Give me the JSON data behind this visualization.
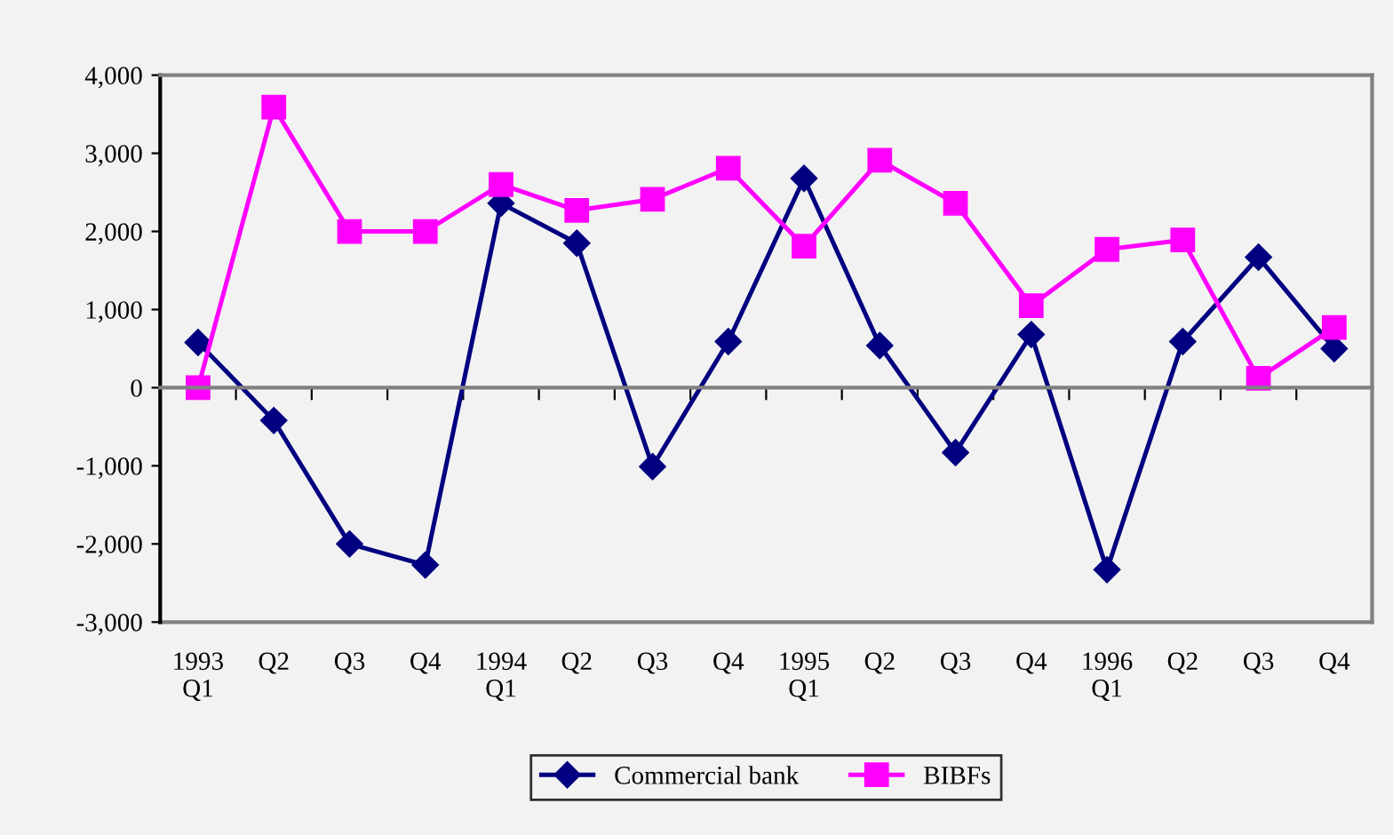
{
  "chart_data": {
    "type": "line",
    "categories": [
      "1993\nQ1",
      "Q2",
      "Q3",
      "Q4",
      "1994\nQ1",
      "Q2",
      "Q3",
      "Q4",
      "1995\nQ1",
      "Q2",
      "Q3",
      "Q4",
      "1996\nQ1",
      "Q2",
      "Q3",
      "Q4"
    ],
    "series": [
      {
        "name": "Commercial bank",
        "color": "#000080",
        "marker": "diamond",
        "values": [
          580,
          -420,
          -2000,
          -2270,
          2360,
          1850,
          -1010,
          590,
          2680,
          540,
          -830,
          680,
          -2330,
          590,
          1670,
          500
        ]
      },
      {
        "name": "BIBFs",
        "color": "#ff00ff",
        "marker": "square",
        "values": [
          0,
          3590,
          2000,
          2000,
          2600,
          2270,
          2410,
          2810,
          1810,
          2910,
          2360,
          1050,
          1770,
          1890,
          120,
          770
        ]
      }
    ],
    "ylim": [
      -3000,
      4000
    ],
    "yticks": [
      {
        "value": -3000,
        "label": "-3,000"
      },
      {
        "value": -2000,
        "label": "-2,000"
      },
      {
        "value": -1000,
        "label": "-1,000"
      },
      0,
      {
        "value": 1000,
        "label": "1,000"
      },
      {
        "value": 2000,
        "label": "2,000"
      },
      {
        "value": 3000,
        "label": "3,000"
      },
      {
        "value": 4000,
        "label": "4,000"
      }
    ],
    "legend": "bottom",
    "line_style": "solid"
  }
}
